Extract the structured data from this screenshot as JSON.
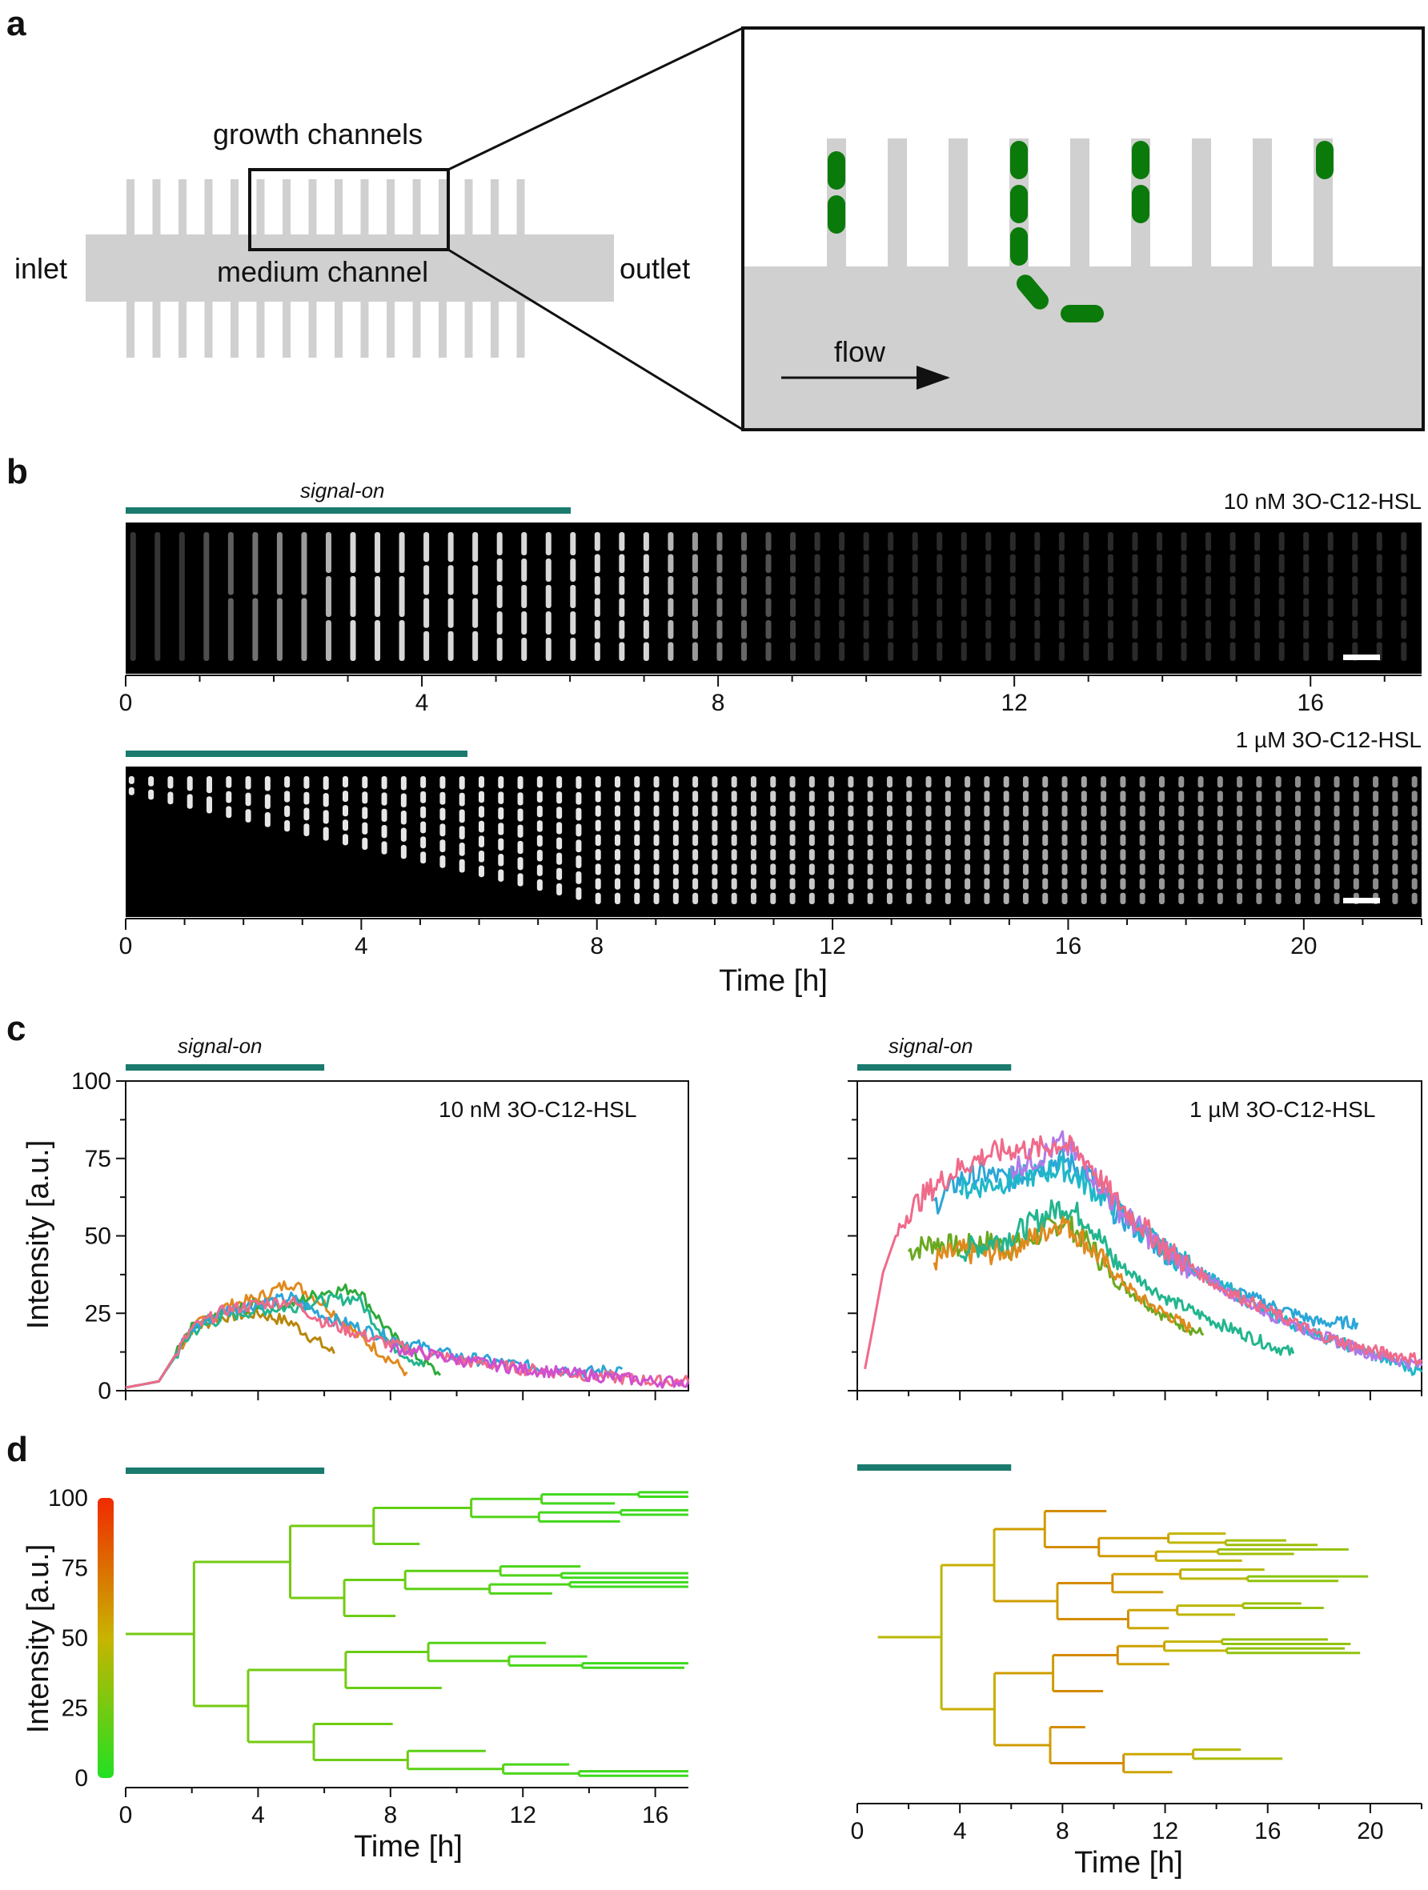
{
  "panel_labels": [
    "a",
    "b",
    "c",
    "d"
  ],
  "schematic": {
    "inlet": "inlet",
    "outlet": "outlet",
    "growth_channels": "growth channels",
    "medium_channel": "medium channel",
    "flow": "flow",
    "colors": {
      "channel": "#d0d0d0",
      "cell": "#0a7a0a"
    }
  },
  "signal_on_label": "signal-on",
  "signal_bar_color": "#1a7a6e",
  "kymographs": [
    {
      "condition": "10 nM 3O-C12-HSL",
      "signal_end_h": 6,
      "ticks": [
        0,
        4,
        8,
        12,
        16
      ],
      "xmax": 17.5
    },
    {
      "condition": "1 µM 3O-C12-HSL",
      "signal_end_h": 6,
      "ticks": [
        0,
        4,
        8,
        12,
        16,
        20
      ],
      "xmax": 22
    }
  ],
  "time_label": "Time [h]",
  "intensity_label": "Intensity [a.u.]",
  "chart_data": [
    {
      "type": "line",
      "condition": "10 nM 3O-C12-HSL",
      "xlim": [
        0,
        17
      ],
      "ylim": [
        0,
        100
      ],
      "yticks": [
        0,
        25,
        50,
        75,
        100
      ],
      "signal_on": [
        0,
        6
      ],
      "series": [
        {
          "color": "#b8860b",
          "x": [
            0,
            1,
            2,
            3,
            4,
            5,
            6.3
          ],
          "y": [
            1,
            3,
            20,
            24,
            25,
            22,
            12
          ]
        },
        {
          "color": "#e08a1e",
          "x": [
            0,
            1,
            2,
            3,
            4,
            5,
            6,
            7,
            8.5
          ],
          "y": [
            1,
            3,
            20,
            27,
            30,
            35,
            28,
            18,
            6
          ]
        },
        {
          "color": "#2eaa3a",
          "x": [
            0,
            1,
            2,
            3,
            4,
            5,
            6,
            7,
            8,
            9.5
          ],
          "y": [
            1,
            3,
            20,
            25,
            28,
            28,
            32,
            33,
            18,
            5
          ]
        },
        {
          "color": "#23b58f",
          "x": [
            0,
            1,
            2,
            3,
            4,
            5,
            6,
            7,
            8,
            9
          ],
          "y": [
            1,
            3,
            19,
            24,
            26,
            27,
            29,
            30,
            15,
            8
          ]
        },
        {
          "color": "#2ba6d8",
          "x": [
            0,
            1,
            2,
            3,
            4,
            5,
            6,
            8,
            10,
            12,
            14,
            15
          ],
          "y": [
            1,
            3,
            20,
            26,
            28,
            30,
            24,
            17,
            11,
            8,
            6,
            7
          ]
        },
        {
          "color": "#f06a8a",
          "x": [
            0,
            1,
            2,
            3,
            4,
            5,
            6,
            8,
            10,
            12,
            14,
            16,
            17
          ],
          "y": [
            1,
            3,
            20,
            26,
            28,
            29,
            22,
            15,
            10,
            7,
            5,
            3,
            3
          ]
        },
        {
          "color": "#d04fd0",
          "x": [
            8,
            10,
            12,
            14,
            16,
            17
          ],
          "y": [
            14,
            10,
            7,
            5,
            3,
            3
          ]
        }
      ]
    },
    {
      "type": "line",
      "condition": "1 µM 3O-C12-HSL",
      "xlim": [
        0,
        22
      ],
      "ylim": [
        0,
        100
      ],
      "yticks": [
        0,
        25,
        50,
        75,
        100
      ],
      "signal_on": [
        0,
        6
      ],
      "series": [
        {
          "color": "#6aa820",
          "x": [
            2,
            3,
            4,
            5,
            6,
            7,
            8,
            9,
            10,
            11,
            12,
            13.5
          ],
          "y": [
            45,
            48,
            46,
            48,
            46,
            50,
            55,
            48,
            36,
            30,
            24,
            18
          ]
        },
        {
          "color": "#e08a1e",
          "x": [
            3,
            4,
            5,
            6,
            7,
            8,
            9,
            10,
            11,
            12,
            13
          ],
          "y": [
            42,
            45,
            44,
            46,
            50,
            55,
            47,
            38,
            30,
            25,
            20
          ]
        },
        {
          "color": "#23b58f",
          "x": [
            4,
            6,
            8,
            9,
            10,
            12,
            14,
            16,
            17
          ],
          "y": [
            45,
            50,
            60,
            55,
            42,
            30,
            22,
            15,
            12
          ]
        },
        {
          "color": "#2ba6d8",
          "x": [
            3,
            4,
            5,
            6,
            7,
            8,
            9,
            10,
            12,
            14,
            16,
            18,
            19.5
          ],
          "y": [
            60,
            68,
            70,
            68,
            72,
            75,
            70,
            58,
            45,
            35,
            28,
            22,
            22
          ]
        },
        {
          "color": "#1fb8c8",
          "x": [
            4,
            6,
            8,
            10,
            12,
            14,
            16,
            18,
            20,
            22
          ],
          "y": [
            65,
            68,
            72,
            60,
            45,
            35,
            25,
            18,
            12,
            6
          ]
        },
        {
          "color": "#b07ae8",
          "x": [
            6,
            7,
            8,
            9,
            10,
            12,
            14,
            16,
            18,
            20,
            22
          ],
          "y": [
            72,
            75,
            80,
            72,
            60,
            45,
            34,
            25,
            18,
            12,
            8
          ]
        },
        {
          "color": "#f06a8a",
          "x": [
            0.3,
            0.6,
            1,
            1.5,
            2,
            3,
            4,
            5,
            6,
            7,
            8,
            9,
            10,
            12,
            14,
            16,
            18,
            20,
            22
          ],
          "y": [
            7,
            20,
            38,
            50,
            58,
            66,
            72,
            76,
            78,
            78,
            80,
            74,
            62,
            46,
            34,
            26,
            18,
            13,
            10
          ]
        }
      ]
    },
    {
      "type": "tree",
      "condition": "10 nM 3O-C12-HSL",
      "xlim": [
        0,
        17
      ],
      "colorbar": {
        "min": 0,
        "max": 100,
        "ticks": [
          0,
          25,
          50,
          75,
          100
        ]
      },
      "signal_on": [
        0,
        6
      ],
      "end_time_h": 17
    },
    {
      "type": "tree",
      "condition": "1 µM 3O-C12-HSL",
      "xlim": [
        0,
        22
      ],
      "signal_on": [
        0,
        6
      ],
      "end_time_h": 22
    }
  ]
}
